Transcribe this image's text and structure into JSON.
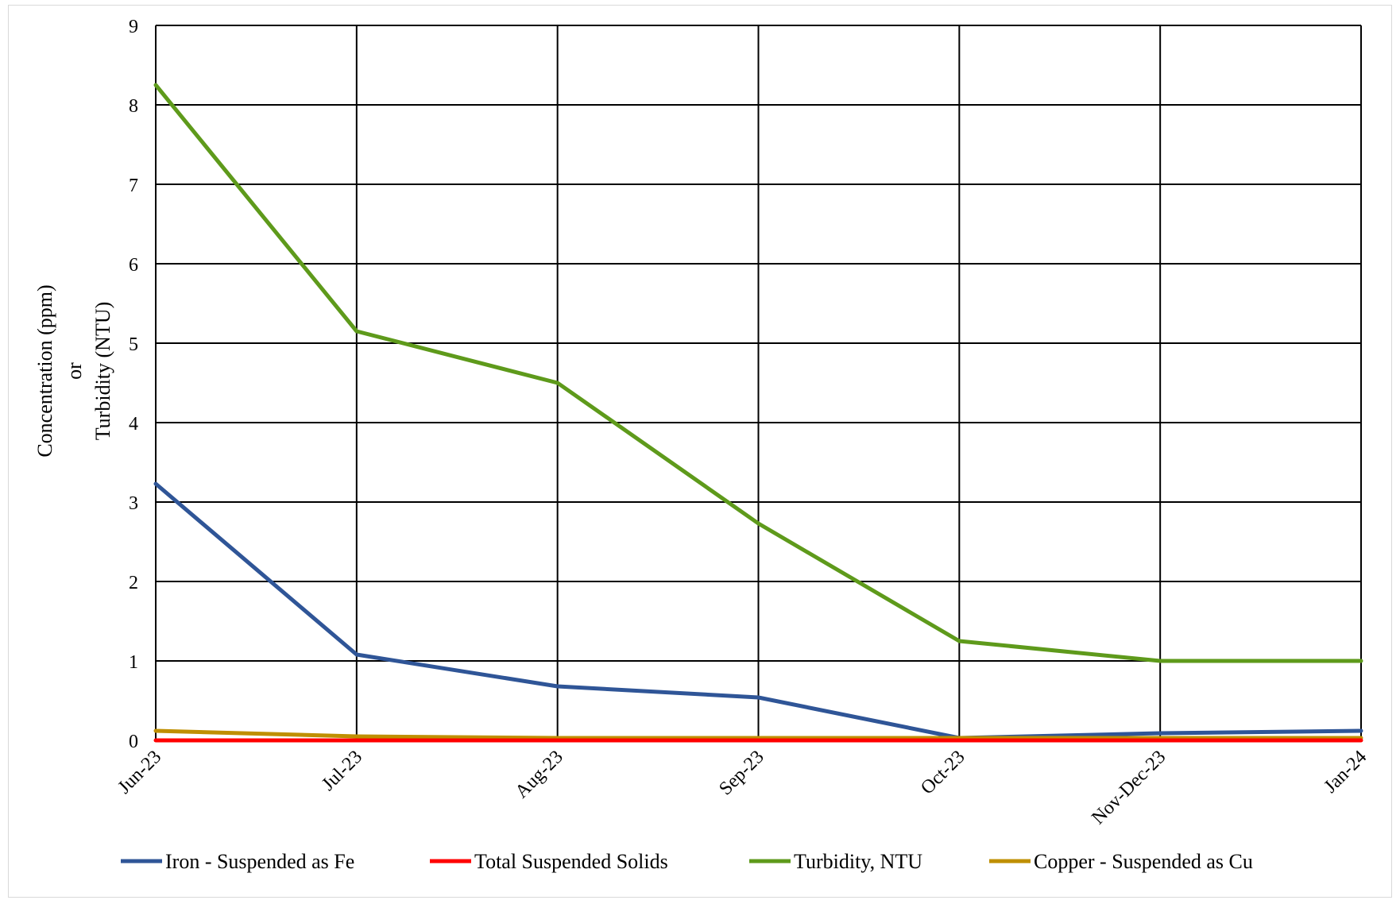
{
  "chart_data": {
    "type": "line",
    "ylabel": "Concentration (ppm)",
    "ylabel_2": "or",
    "ylabel_3": "Turbidity (NTU)",
    "xlabel": "",
    "categories": [
      "Jun-23",
      "Jul-23",
      "Aug-23",
      "Sep-23",
      "Oct-23",
      "Nov-Dec-23",
      "Jan-24"
    ],
    "ylim": [
      0,
      9
    ],
    "yticks": [
      "0",
      "1",
      "2",
      "3",
      "4",
      "5",
      "6",
      "7",
      "8",
      "9"
    ],
    "grid": true,
    "legend_position": "bottom",
    "series": [
      {
        "name": "Iron - Suspended as Fe",
        "color": "#2F5597",
        "values": [
          3.23,
          1.08,
          0.68,
          0.54,
          0.03,
          0.09,
          0.12
        ]
      },
      {
        "name": "Total Suspended Solids",
        "color": "#FF0000",
        "values": [
          0,
          0,
          0,
          0,
          0,
          0,
          0
        ]
      },
      {
        "name": "Turbidity, NTU",
        "color": "#5E9A1B",
        "values": [
          8.25,
          5.15,
          4.5,
          2.73,
          1.25,
          1.0,
          1.0
        ]
      },
      {
        "name": "Copper - Suspended as Cu",
        "color": "#BF8F00",
        "values": [
          0.12,
          0.05,
          0.03,
          0.03,
          0.03,
          0.03,
          0.03
        ]
      }
    ]
  }
}
